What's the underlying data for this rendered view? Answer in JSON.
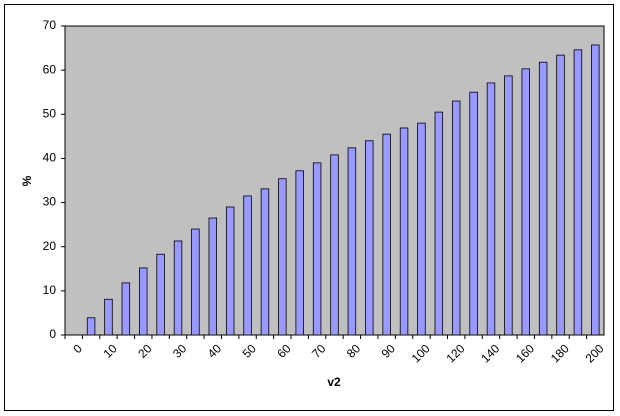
{
  "chart_data": {
    "type": "bar",
    "x_label": "v2",
    "y_label": "%",
    "categories": [
      "0",
      null,
      "10",
      null,
      "20",
      null,
      "30",
      null,
      "40",
      null,
      "50",
      null,
      "60",
      null,
      "70",
      null,
      "80",
      null,
      "90",
      null,
      "100",
      null,
      "120",
      null,
      "140",
      null,
      "160",
      null,
      "180",
      null,
      "200"
    ],
    "values": [
      0,
      3.9,
      8.1,
      11.8,
      15.2,
      18.3,
      21.3,
      24.0,
      26.5,
      29.0,
      31.5,
      33.1,
      35.4,
      37.2,
      39.0,
      40.8,
      42.4,
      44.0,
      45.5,
      46.9,
      48.0,
      50.5,
      53.0,
      55.0,
      57.1,
      58.7,
      60.3,
      61.8,
      63.4,
      64.6,
      65.7
    ],
    "color": "#9999ff",
    "plot_background": "#c0c0c0",
    "ylim": [
      0,
      70
    ],
    "yticks": [
      0,
      10,
      20,
      30,
      40,
      50,
      60,
      70
    ],
    "grid": false
  }
}
